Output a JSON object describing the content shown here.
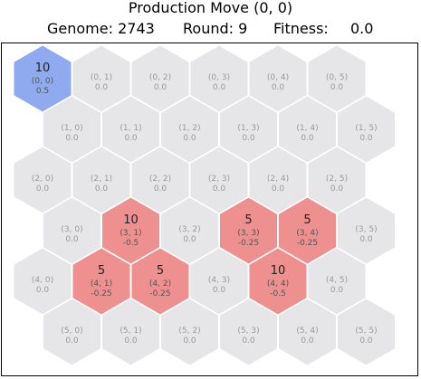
{
  "header": {
    "title": "Production Move (0, 0)",
    "genome_label": "Genome: 2743",
    "round_label": "Round: 9",
    "fitness_label": "Fitness:",
    "fitness_value": "0.0"
  },
  "colors": {
    "empty": "#e6e6e8",
    "selected": "#90aaf0",
    "occupied": "#ee9090",
    "label_dim": "#9a9a9a",
    "label_dark": "#222222"
  },
  "cells": [
    {
      "coord": "(0, 0)",
      "value": "0.5",
      "units": "10",
      "state": "selected"
    },
    {
      "coord": "(0, 1)",
      "value": "0.0"
    },
    {
      "coord": "(0, 2)",
      "value": "0.0"
    },
    {
      "coord": "(0, 3)",
      "value": "0.0"
    },
    {
      "coord": "(0, 4)",
      "value": "0.0"
    },
    {
      "coord": "(0, 5)",
      "value": "0.0"
    },
    {
      "coord": "(1, 0)",
      "value": "0.0"
    },
    {
      "coord": "(1, 1)",
      "value": "0.0"
    },
    {
      "coord": "(1, 2)",
      "value": "0.0"
    },
    {
      "coord": "(1, 3)",
      "value": "0.0"
    },
    {
      "coord": "(1, 4)",
      "value": "0.0"
    },
    {
      "coord": "(1, 5)",
      "value": "0.0"
    },
    {
      "coord": "(2, 0)",
      "value": "0.0"
    },
    {
      "coord": "(2, 1)",
      "value": "0.0"
    },
    {
      "coord": "(2, 2)",
      "value": "0.0"
    },
    {
      "coord": "(2, 3)",
      "value": "0.0"
    },
    {
      "coord": "(2, 4)",
      "value": "0.0"
    },
    {
      "coord": "(2, 5)",
      "value": "0.0"
    },
    {
      "coord": "(3, 0)",
      "value": "0.0"
    },
    {
      "coord": "(3, 1)",
      "value": "-0.5",
      "units": "10",
      "state": "occupied"
    },
    {
      "coord": "(3, 2)",
      "value": "0.0"
    },
    {
      "coord": "(3, 3)",
      "value": "-0.25",
      "units": "5",
      "state": "occupied"
    },
    {
      "coord": "(3, 4)",
      "value": "-0.25",
      "units": "5",
      "state": "occupied"
    },
    {
      "coord": "(3, 5)",
      "value": "0.0"
    },
    {
      "coord": "(4, 0)",
      "value": "0.0"
    },
    {
      "coord": "(4, 1)",
      "value": "-0.25",
      "units": "5",
      "state": "occupied"
    },
    {
      "coord": "(4, 2)",
      "value": "-0.25",
      "units": "5",
      "state": "occupied"
    },
    {
      "coord": "(4, 3)",
      "value": "0.0"
    },
    {
      "coord": "(4, 4)",
      "value": "-0.5",
      "units": "10",
      "state": "occupied"
    },
    {
      "coord": "(4, 5)",
      "value": "0.0"
    },
    {
      "coord": "(5, 0)",
      "value": "0.0"
    },
    {
      "coord": "(5, 1)",
      "value": "0.0"
    },
    {
      "coord": "(5, 2)",
      "value": "0.0"
    },
    {
      "coord": "(5, 3)",
      "value": "0.0"
    },
    {
      "coord": "(5, 4)",
      "value": "0.0"
    },
    {
      "coord": "(5, 5)",
      "value": "0.0"
    }
  ]
}
